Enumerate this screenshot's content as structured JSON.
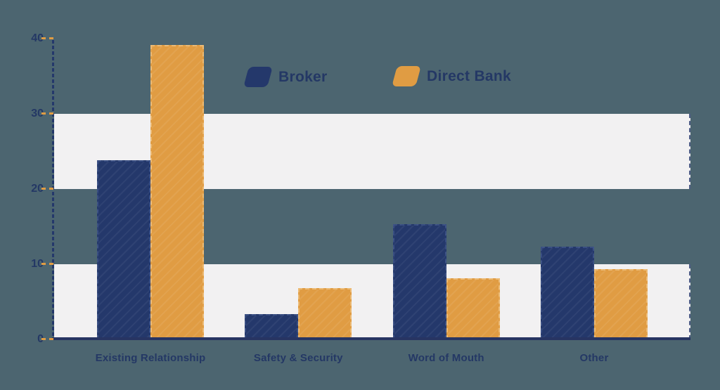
{
  "page": {
    "background_color": "#4C6570"
  },
  "legend": {
    "items": [
      {
        "label": "Broker",
        "color": "#24386B"
      },
      {
        "label": "Direct Bank",
        "color": "#E09C43"
      }
    ]
  },
  "chart_data": {
    "type": "bar",
    "title": "",
    "categories": [
      "Existing Relationship",
      "Safety & Security",
      "Word of Mouth",
      "Other"
    ],
    "series": [
      {
        "name": "Broker",
        "color": "#24386B",
        "values": [
          23.8,
          3.4,
          15.3,
          12.3
        ]
      },
      {
        "name": "Direct Bank",
        "color": "#E09C43",
        "values": [
          39.2,
          6.8,
          8.1,
          9.3
        ]
      }
    ],
    "ylim": [
      0,
      40
    ],
    "yticks": [
      "0",
      "10",
      "20",
      "30",
      "40"
    ],
    "xlabel": "",
    "ylabel": "",
    "legend_position": "top-center",
    "grid": "alternating horizontal bands between gridlines",
    "band_ranges": [
      [
        0,
        10
      ],
      [
        20,
        30
      ]
    ],
    "band_color": "#F2F1F2",
    "axis_color": "#24386B",
    "tick_mark_color": "#E09C43",
    "label_color": "#243865"
  }
}
